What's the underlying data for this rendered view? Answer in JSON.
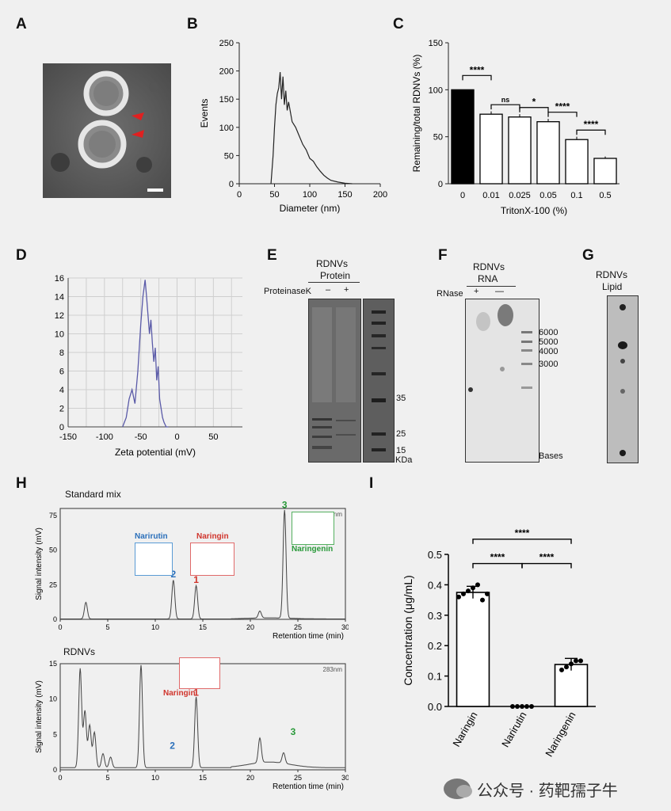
{
  "panels": {
    "A": "A",
    "B": "B",
    "C": "C",
    "D": "D",
    "E": "E",
    "F": "F",
    "G": "G",
    "H": "H",
    "I": "I"
  },
  "colors": {
    "trace": "#5a5aa8",
    "bar_black": "#000000",
    "naringin_red": "#d0342c",
    "narirutin_blue": "#2a6fba",
    "naringenin_green": "#2a9a3a"
  },
  "panelE": {
    "header1": "RDNVs",
    "header2": "Protein",
    "rowlabel": "ProteinaseK",
    "minus": "–",
    "plus": "+",
    "markers": [
      "35",
      "25",
      "15"
    ],
    "unit": "KDa"
  },
  "panelF": {
    "header1": "RDNVs",
    "header2": "RNA",
    "rowlabel": "RNase",
    "plus": "+",
    "minus": "—",
    "markers": [
      "6000",
      "5000",
      "4000",
      "3000"
    ],
    "unit": "Bases"
  },
  "panelG": {
    "header1": "RDNVs",
    "header2": "Lipid"
  },
  "panelH": {
    "top_title": "Standard mix",
    "bottom_title": "RDNVs",
    "wavelength": "283nm",
    "ylabel": "Signal intensity (mV)",
    "xlabel": "Retention time (min)",
    "narirutin": "Narirutin",
    "naringin": "Naringin",
    "naringenin": "Naringenin",
    "peak1": "1",
    "peak2": "2",
    "peak3": "3"
  },
  "watermark": "公众号 · 药靶孺子牛",
  "chart_data": [
    {
      "id": "B",
      "type": "line",
      "xlabel": "Diameter (nm)",
      "ylabel": "Events",
      "xlim": [
        0,
        200
      ],
      "ylim": [
        0,
        250
      ],
      "xticks": [
        0,
        50,
        100,
        150,
        200
      ],
      "yticks": [
        0,
        50,
        100,
        150,
        200,
        250
      ],
      "x": [
        45,
        48,
        50,
        52,
        54,
        56,
        58,
        60,
        62,
        64,
        66,
        68,
        70,
        75,
        80,
        85,
        90,
        95,
        100,
        105,
        110,
        115,
        120,
        125,
        130,
        140,
        150,
        160
      ],
      "y": [
        0,
        50,
        100,
        140,
        160,
        170,
        198,
        150,
        190,
        140,
        165,
        130,
        145,
        110,
        100,
        85,
        70,
        60,
        45,
        40,
        30,
        22,
        15,
        10,
        6,
        3,
        1,
        0
      ]
    },
    {
      "id": "C",
      "type": "bar",
      "xlabel": "TritonX-100 (%)",
      "ylabel": "Remaining/total RDNVs (%)",
      "ylim": [
        0,
        150
      ],
      "yticks": [
        0,
        50,
        100,
        150
      ],
      "categories": [
        "0",
        "0.01",
        "0.025",
        "0.05",
        "0.1",
        "0.5"
      ],
      "values": [
        100,
        74,
        71,
        66,
        47,
        27
      ],
      "errors": [
        0,
        3,
        3,
        3,
        3,
        2
      ],
      "significance": [
        {
          "from": 0,
          "to": 1,
          "label": "****"
        },
        {
          "from": 1,
          "to": 2,
          "label": "ns"
        },
        {
          "from": 2,
          "to": 3,
          "label": "*"
        },
        {
          "from": 3,
          "to": 4,
          "label": "****"
        },
        {
          "from": 4,
          "to": 5,
          "label": "****"
        }
      ]
    },
    {
      "id": "D",
      "type": "line",
      "xlabel": "Zeta potential (mV)",
      "xlim": [
        -150,
        90
      ],
      "ylim": [
        0,
        16
      ],
      "xticks": [
        -150,
        -100,
        -50,
        0,
        50
      ],
      "yticks": [
        0,
        2,
        4,
        6,
        8,
        10,
        12,
        14,
        16
      ],
      "x": [
        -75,
        -70,
        -66,
        -62,
        -58,
        -54,
        -50,
        -47,
        -44,
        -42,
        -40,
        -38,
        -36,
        -34,
        -32,
        -30,
        -28,
        -26,
        -24,
        -22,
        -20,
        -18,
        -15,
        -12
      ],
      "y": [
        0,
        1,
        3,
        4,
        2.5,
        6,
        11,
        14,
        15.8,
        14,
        12,
        10,
        11.5,
        9,
        7,
        8.5,
        5,
        6.5,
        3,
        2,
        1,
        0.5,
        0,
        0
      ]
    },
    {
      "id": "H-top",
      "type": "line",
      "xlabel": "Retention time (min)",
      "ylabel": "Signal intensity (mV)",
      "xlim": [
        0,
        30
      ],
      "ylim": [
        0,
        80
      ],
      "xticks": [
        0,
        5,
        10,
        15,
        20,
        25,
        30
      ],
      "yticks": [
        0,
        25,
        50,
        75
      ],
      "peaks": [
        {
          "t": 2.7,
          "h": 12
        },
        {
          "t": 11.9,
          "h": 28
        },
        {
          "t": 14.3,
          "h": 24
        },
        {
          "t": 21.0,
          "h": 5
        },
        {
          "t": 23.6,
          "h": 78
        }
      ]
    },
    {
      "id": "H-bottom",
      "type": "line",
      "xlabel": "Retention time (min)",
      "ylabel": "Signal intensity (mV)",
      "xlim": [
        0,
        30
      ],
      "ylim": [
        0,
        15
      ],
      "xticks": [
        0,
        5,
        10,
        15,
        20,
        25,
        30
      ],
      "yticks": [
        0,
        5,
        10,
        15
      ],
      "peaks": [
        {
          "t": 2.1,
          "h": 14
        },
        {
          "t": 2.6,
          "h": 8
        },
        {
          "t": 3.1,
          "h": 6
        },
        {
          "t": 3.6,
          "h": 5
        },
        {
          "t": 4.5,
          "h": 2
        },
        {
          "t": 5.3,
          "h": 1.5
        },
        {
          "t": 8.5,
          "h": 14.5
        },
        {
          "t": 14.3,
          "h": 10
        },
        {
          "t": 21.0,
          "h": 3.5
        },
        {
          "t": 23.5,
          "h": 1.5
        }
      ]
    },
    {
      "id": "I",
      "type": "bar",
      "ylabel": "Concentration (μg/mL)",
      "ylim": [
        0,
        0.5
      ],
      "yticks": [
        0.0,
        0.1,
        0.2,
        0.3,
        0.4,
        0.5
      ],
      "categories": [
        "Naringin",
        "Narirutin",
        "Naringenin"
      ],
      "values": [
        0.375,
        0.0,
        0.138
      ],
      "points": [
        [
          0.36,
          0.37,
          0.38,
          0.39,
          0.4,
          0.35,
          0.37
        ],
        [
          0,
          0,
          0,
          0,
          0
        ],
        [
          0.12,
          0.13,
          0.14,
          0.15,
          0.15
        ]
      ],
      "errors": [
        0.02,
        0,
        0.02
      ],
      "significance": [
        {
          "from": 0,
          "to": 1,
          "label": "****"
        },
        {
          "from": 1,
          "to": 2,
          "label": "****"
        },
        {
          "from": 0,
          "to": 2,
          "label": "****"
        }
      ]
    }
  ]
}
